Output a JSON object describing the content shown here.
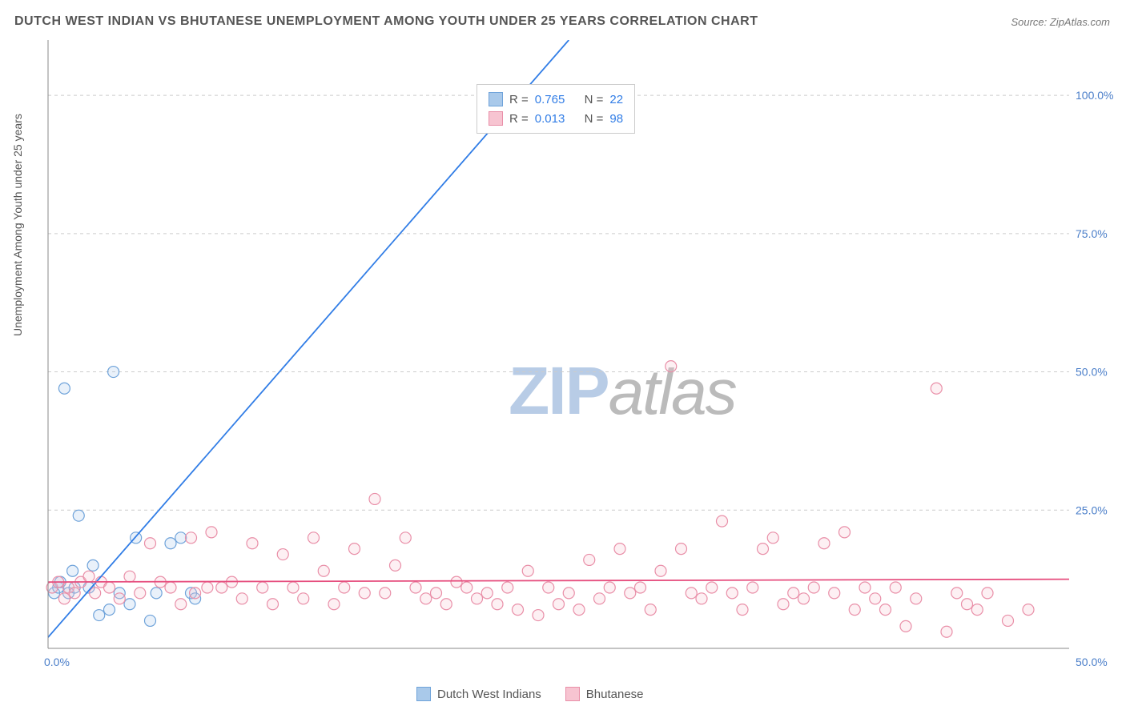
{
  "title": "DUTCH WEST INDIAN VS BHUTANESE UNEMPLOYMENT AMONG YOUTH UNDER 25 YEARS CORRELATION CHART",
  "source": "Source: ZipAtlas.com",
  "y_axis_label": "Unemployment Among Youth under 25 years",
  "watermark_zip": "ZIP",
  "watermark_atlas": "atlas",
  "chart": {
    "type": "scatter",
    "xlim": [
      0,
      50
    ],
    "ylim": [
      0,
      110
    ],
    "xtick_labels": [
      "0.0%",
      "50.0%"
    ],
    "ytick_values": [
      25,
      50,
      75,
      100
    ],
    "ytick_labels": [
      "25.0%",
      "50.0%",
      "75.0%",
      "100.0%"
    ],
    "grid_color": "#cccccc",
    "axis_color": "#888888",
    "tick_label_color": "#4a7ec9",
    "background_color": "#ffffff",
    "point_radius": 7,
    "series": [
      {
        "name": "Dutch West Indians",
        "color_stroke": "#6fa3da",
        "color_fill": "#a9c9ea",
        "trend_color": "#317de6",
        "R": "0.765",
        "N": "22",
        "trend": {
          "x1": 0,
          "y1": 2,
          "x2": 25.5,
          "y2": 110
        },
        "points": [
          [
            0.3,
            10
          ],
          [
            0.5,
            11
          ],
          [
            0.6,
            12
          ],
          [
            0.8,
            47
          ],
          [
            1.0,
            10
          ],
          [
            1.2,
            14
          ],
          [
            1.5,
            24
          ],
          [
            1.3,
            11
          ],
          [
            2.0,
            11
          ],
          [
            2.2,
            15
          ],
          [
            2.5,
            6
          ],
          [
            3.0,
            7
          ],
          [
            3.2,
            50
          ],
          [
            3.5,
            10
          ],
          [
            4.0,
            8
          ],
          [
            4.3,
            20
          ],
          [
            5.0,
            5
          ],
          [
            5.3,
            10
          ],
          [
            6.0,
            19
          ],
          [
            6.5,
            20
          ],
          [
            7.0,
            10
          ],
          [
            7.2,
            9
          ]
        ]
      },
      {
        "name": "Bhutanese",
        "color_stroke": "#e98fa8",
        "color_fill": "#f7c4d1",
        "trend_color": "#e64e7e",
        "R": "0.013",
        "N": "98",
        "trend": {
          "x1": 0,
          "y1": 12,
          "x2": 50,
          "y2": 12.5
        },
        "points": [
          [
            0.2,
            11
          ],
          [
            0.5,
            12
          ],
          [
            0.8,
            9
          ],
          [
            1.0,
            11
          ],
          [
            1.3,
            10
          ],
          [
            1.6,
            12
          ],
          [
            2.0,
            13
          ],
          [
            2.3,
            10
          ],
          [
            2.6,
            12
          ],
          [
            3.0,
            11
          ],
          [
            3.5,
            9
          ],
          [
            4.0,
            13
          ],
          [
            4.5,
            10
          ],
          [
            5.0,
            19
          ],
          [
            5.5,
            12
          ],
          [
            6.0,
            11
          ],
          [
            6.5,
            8
          ],
          [
            7.0,
            20
          ],
          [
            7.2,
            10
          ],
          [
            7.8,
            11
          ],
          [
            8.0,
            21
          ],
          [
            8.5,
            11
          ],
          [
            9.0,
            12
          ],
          [
            9.5,
            9
          ],
          [
            10.0,
            19
          ],
          [
            10.5,
            11
          ],
          [
            11.0,
            8
          ],
          [
            11.5,
            17
          ],
          [
            12.0,
            11
          ],
          [
            12.5,
            9
          ],
          [
            13.0,
            20
          ],
          [
            13.5,
            14
          ],
          [
            14.0,
            8
          ],
          [
            14.5,
            11
          ],
          [
            15.0,
            18
          ],
          [
            15.5,
            10
          ],
          [
            16.0,
            27
          ],
          [
            16.5,
            10
          ],
          [
            17.0,
            15
          ],
          [
            17.5,
            20
          ],
          [
            18.0,
            11
          ],
          [
            18.5,
            9
          ],
          [
            19.0,
            10
          ],
          [
            19.5,
            8
          ],
          [
            20.0,
            12
          ],
          [
            20.5,
            11
          ],
          [
            21.0,
            9
          ],
          [
            21.5,
            10
          ],
          [
            22.0,
            8
          ],
          [
            22.5,
            11
          ],
          [
            23.0,
            7
          ],
          [
            23.5,
            14
          ],
          [
            24.0,
            6
          ],
          [
            24.5,
            11
          ],
          [
            25.0,
            8
          ],
          [
            25.5,
            10
          ],
          [
            26.0,
            7
          ],
          [
            26.5,
            16
          ],
          [
            27.0,
            9
          ],
          [
            27.5,
            11
          ],
          [
            28.0,
            18
          ],
          [
            28.5,
            10
          ],
          [
            29.0,
            11
          ],
          [
            29.5,
            7
          ],
          [
            30.0,
            14
          ],
          [
            30.5,
            51
          ],
          [
            31.0,
            18
          ],
          [
            31.5,
            10
          ],
          [
            32.0,
            9
          ],
          [
            32.5,
            11
          ],
          [
            33.0,
            23
          ],
          [
            33.5,
            10
          ],
          [
            34.0,
            7
          ],
          [
            34.5,
            11
          ],
          [
            35.0,
            18
          ],
          [
            35.5,
            20
          ],
          [
            36.0,
            8
          ],
          [
            36.5,
            10
          ],
          [
            37.0,
            9
          ],
          [
            37.5,
            11
          ],
          [
            38.0,
            19
          ],
          [
            38.5,
            10
          ],
          [
            39.0,
            21
          ],
          [
            39.5,
            7
          ],
          [
            40.0,
            11
          ],
          [
            40.5,
            9
          ],
          [
            41.0,
            7
          ],
          [
            41.5,
            11
          ],
          [
            42.0,
            4
          ],
          [
            42.5,
            9
          ],
          [
            43.5,
            47
          ],
          [
            44.0,
            3
          ],
          [
            44.5,
            10
          ],
          [
            45.0,
            8
          ],
          [
            45.5,
            7
          ],
          [
            46.0,
            10
          ],
          [
            47.0,
            5
          ],
          [
            48.0,
            7
          ]
        ]
      }
    ]
  },
  "legend_top": {
    "r_label": "R =",
    "n_label": "N ="
  },
  "legend_bottom": {
    "label1": "Dutch West Indians",
    "label2": "Bhutanese"
  }
}
